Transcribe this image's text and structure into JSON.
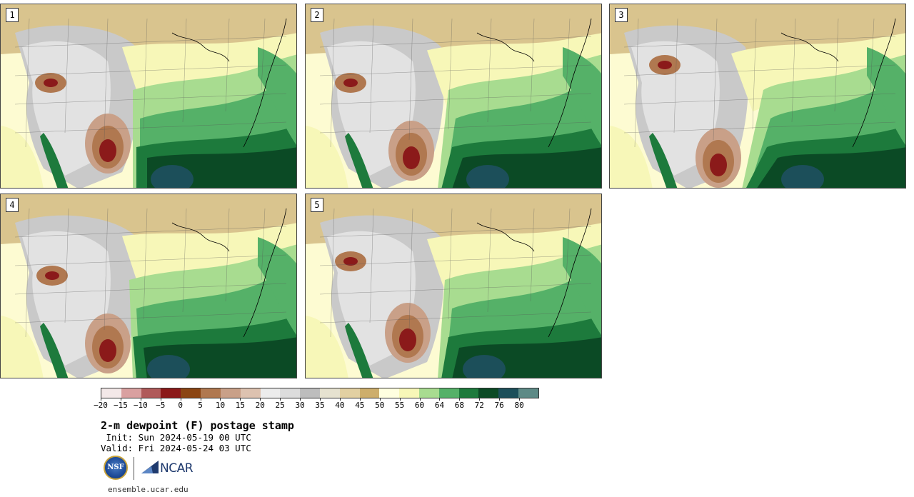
{
  "panels": [
    {
      "label": "1"
    },
    {
      "label": "2"
    },
    {
      "label": "3"
    },
    {
      "label": "4"
    },
    {
      "label": "5"
    }
  ],
  "colorbar": {
    "colors": [
      "#f3e8e8",
      "#d9a0a0",
      "#b05a5a",
      "#8b1a1a",
      "#8b4513",
      "#b07850",
      "#c9a088",
      "#ddc2b0",
      "#ececec",
      "#dcdcdc",
      "#bdbdbd",
      "#e6e2d0",
      "#e2d0a2",
      "#cdae6c",
      "#ffffe0",
      "#f7f7b8",
      "#a8dc90",
      "#55b168",
      "#1d7a3c",
      "#0b4a25",
      "#1c4f5a",
      "#5d8a86"
    ],
    "tick_labels": [
      "−20",
      "−15",
      "−10",
      "−5",
      "0",
      "5",
      "10",
      "15",
      "20",
      "25",
      "30",
      "35",
      "40",
      "45",
      "50",
      "55",
      "60",
      "64",
      "68",
      "72",
      "76",
      "80"
    ]
  },
  "title": "2-m dewpoint (F) postage stamp",
  "init": " Init: Sun 2024-05-19 00 UTC",
  "valid": "Valid: Fri 2024-05-24 03 UTC",
  "logos": {
    "nsf": "NSF",
    "ncar": "NCAR"
  },
  "website": "ensemble.ucar.edu"
}
